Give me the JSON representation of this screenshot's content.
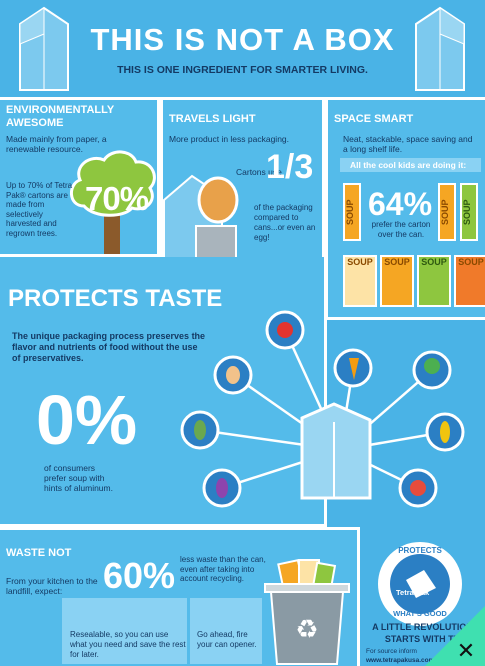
{
  "header": {
    "title": "THIS IS NOT A BOX",
    "subtitle": "THIS IS ONE INGREDIENT FOR SMARTER LIVING."
  },
  "env": {
    "heading": "ENVIRONMENTALLY AWESOME",
    "text": "Made mainly from paper, a renewable resource.",
    "detail": "Up to 70% of Tetra Pak® cartons are made from selectively harvested and regrown trees.",
    "percent": "70%"
  },
  "travels": {
    "heading": "TRAVELS LIGHT",
    "text": "More product in less packaging.",
    "cartons_use": "Cartons use",
    "fraction": "1/3",
    "detail": "of the packaging compared to cans...or even an egg!"
  },
  "space": {
    "heading": "SPACE SMART",
    "text": "Neat, stackable, space saving and a long shelf life.",
    "kids": "All the cool kids are doing it:",
    "percent": "64%",
    "detail": "prefer the carton over the can.",
    "soup_label": "SOUP"
  },
  "taste": {
    "heading": "PROTECTS TASTE",
    "text": "The unique packaging process preserves the flavor and nutrients of food without the use of preservatives.",
    "percent": "0%",
    "detail": "of consumers prefer soup with hints of aluminum."
  },
  "waste": {
    "heading": "WASTE NOT",
    "text": "From your kitchen to the landfill, expect:",
    "percent": "60%",
    "detail": "less waste than the can, even after taking into account recycling.",
    "reseal": "Resealable, so you can use what you need and save the rest for later.",
    "opener": "Go ahead, fire your can opener."
  },
  "badge": {
    "top": "PROTECTS",
    "bottom": "WHAT'S GOOD",
    "brand": "Tetra Pak"
  },
  "footer": {
    "revolution_1": "A LITTLE REVOLUTION",
    "revolution_2": "STARTS WITH TH",
    "source": "For source inform",
    "url": "www.tetrapakusa.com"
  },
  "colors": {
    "background": "#4ab3e6",
    "navy": "#143a64",
    "green": "#8ec63f",
    "orange": "#f5a623",
    "mint": "#3fe0b0"
  },
  "icons": [
    "tomato-icon",
    "chicken-icon",
    "carrot-icon",
    "broccoli-icon",
    "leaf-icon",
    "corn-icon",
    "eggplant-icon",
    "lobster-icon",
    "close-icon",
    "recycle-icon"
  ]
}
